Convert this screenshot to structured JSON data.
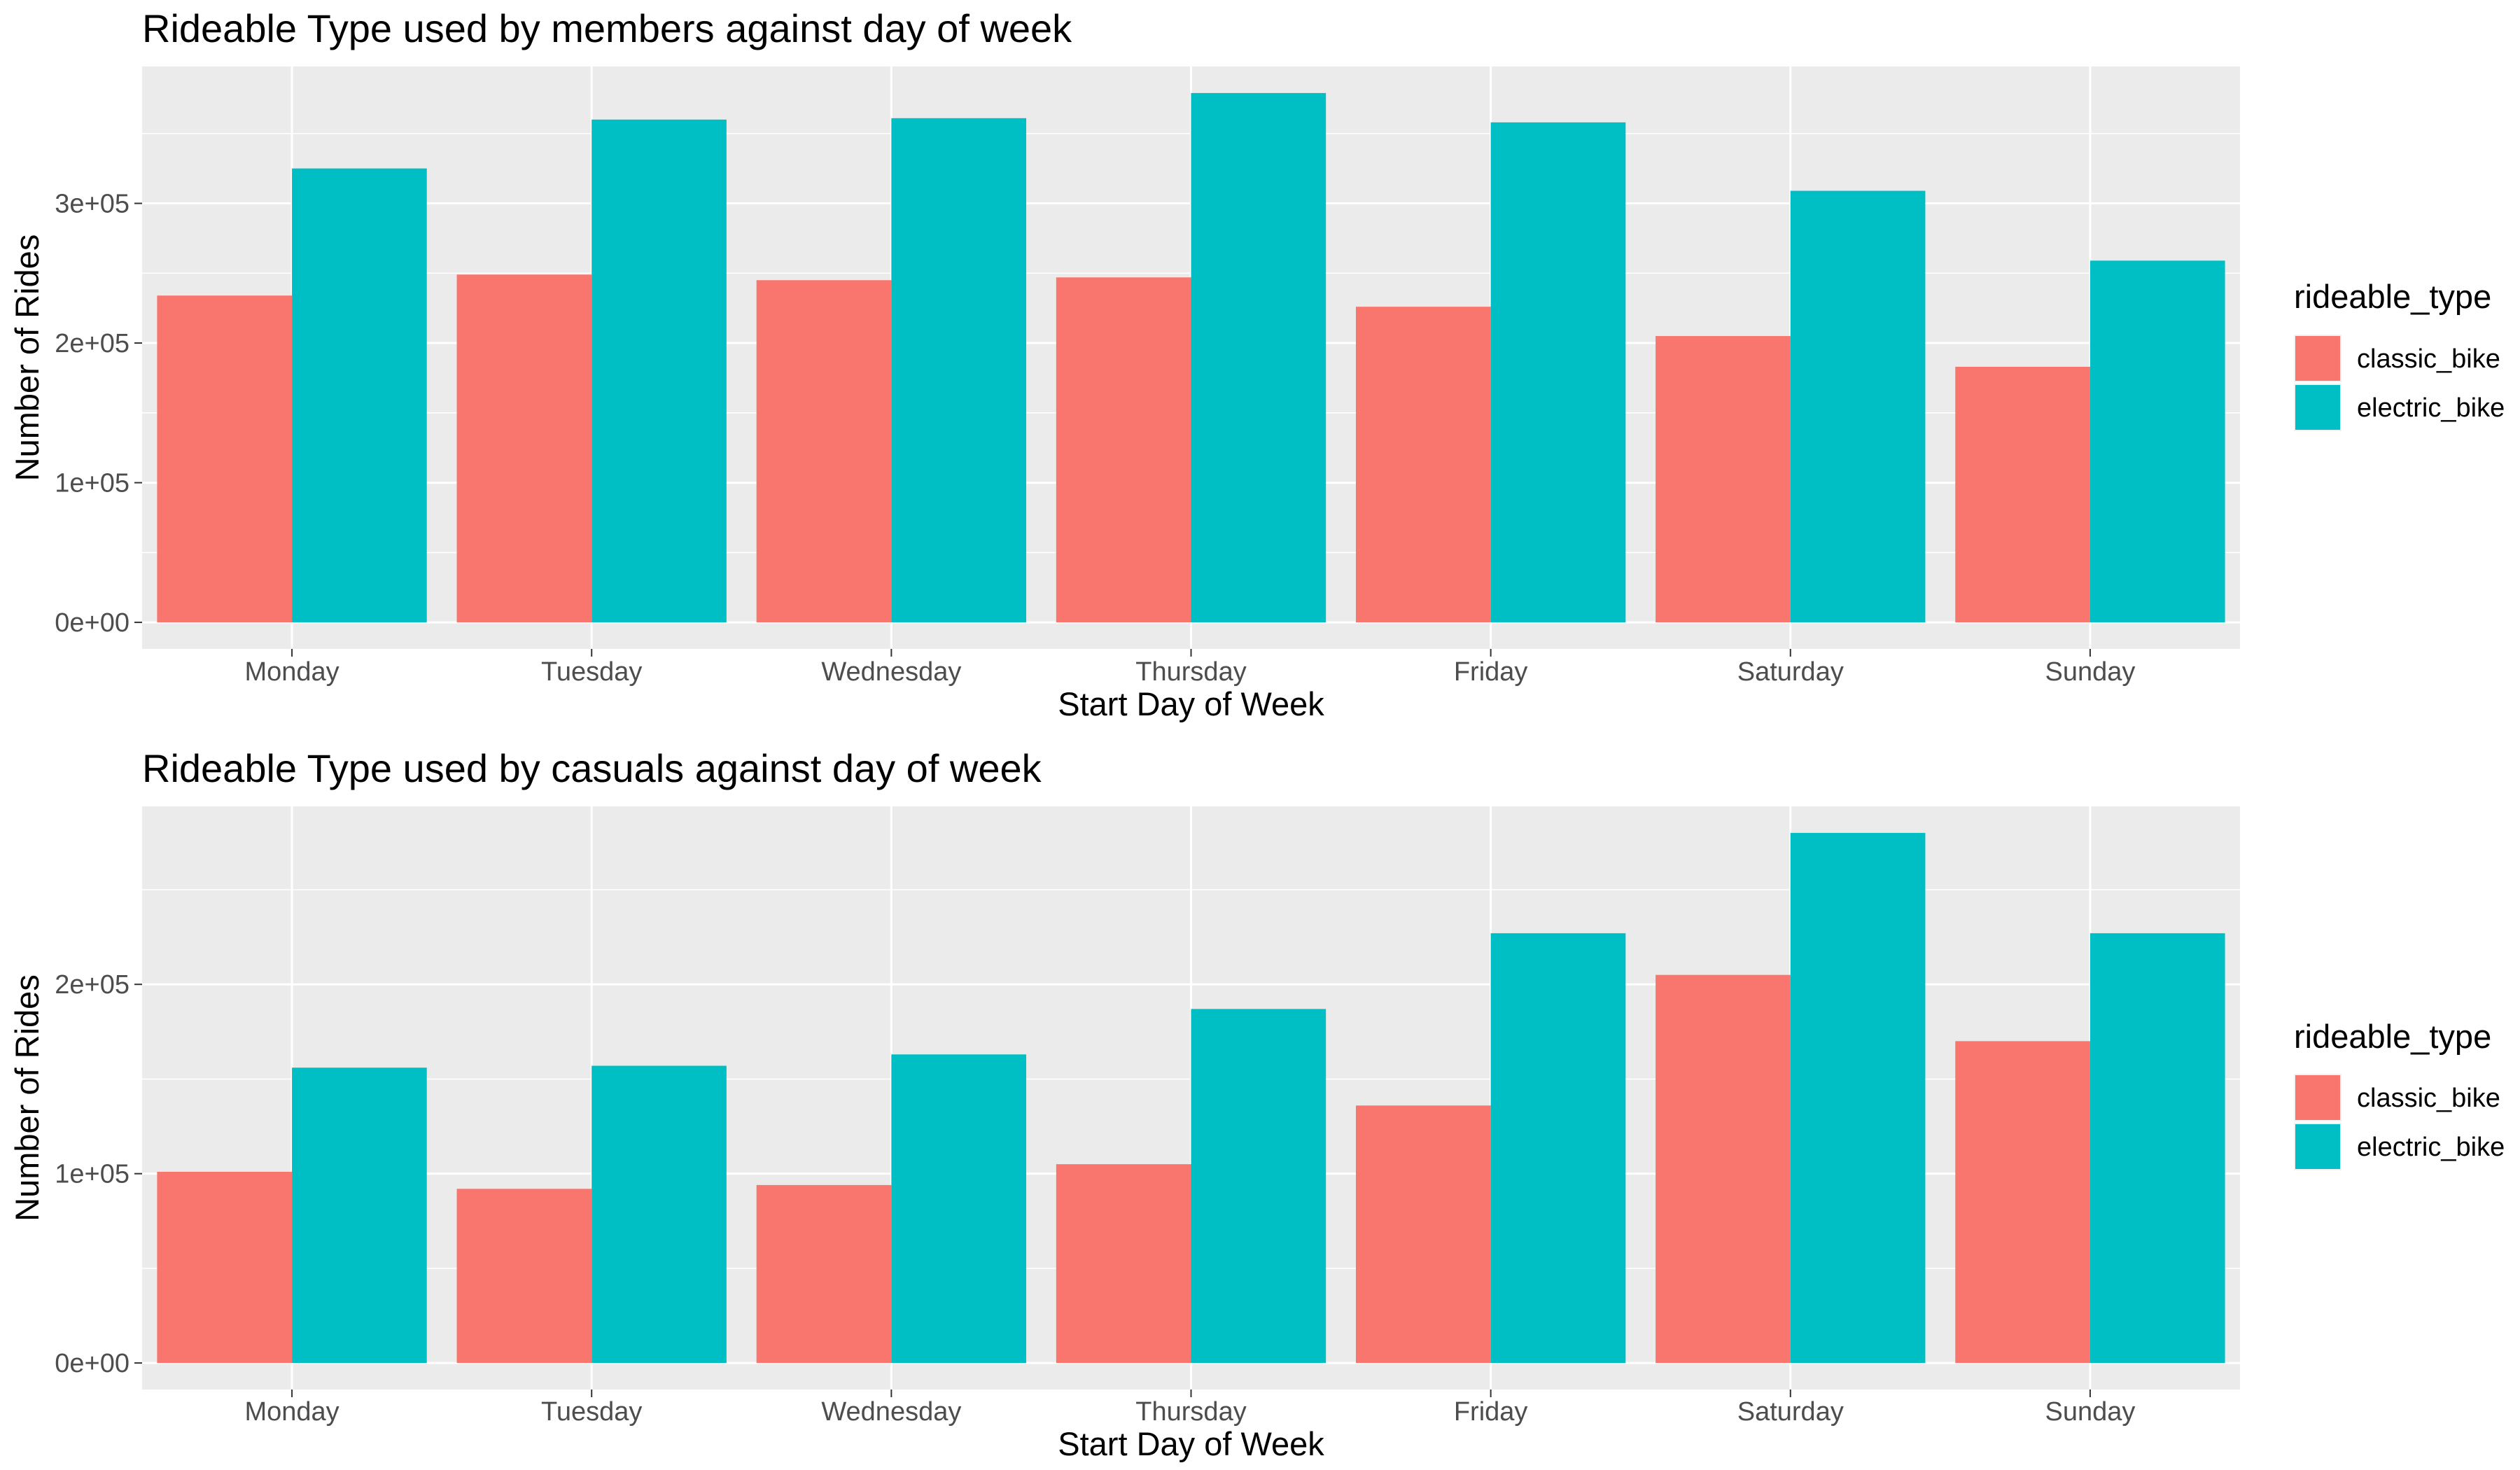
{
  "chart_data": [
    {
      "type": "bar",
      "title": "Rideable Type used by members against day of week",
      "xlabel": "Start Day of Week",
      "ylabel": "Number of Rides",
      "categories": [
        "Monday",
        "Tuesday",
        "Wednesday",
        "Thursday",
        "Friday",
        "Saturday",
        "Sunday"
      ],
      "series": [
        {
          "name": "classic_bike",
          "values": [
            234000,
            249000,
            245000,
            247000,
            226000,
            205000,
            183000
          ]
        },
        {
          "name": "electric_bike",
          "values": [
            325000,
            360000,
            361000,
            379000,
            358000,
            309000,
            259000
          ]
        }
      ],
      "y_ticks": [
        0,
        100000,
        200000,
        300000
      ],
      "y_tick_labels": [
        "0e+00",
        "1e+05",
        "2e+05",
        "3e+05"
      ],
      "ylim": [
        -19000,
        398000
      ],
      "grid": true,
      "legend": {
        "title": "rideable_type",
        "position": "right"
      }
    },
    {
      "type": "bar",
      "title": "Rideable Type used by casuals against day of week",
      "xlabel": "Start Day of Week",
      "ylabel": "Number of Rides",
      "categories": [
        "Monday",
        "Tuesday",
        "Wednesday",
        "Thursday",
        "Friday",
        "Saturday",
        "Sunday"
      ],
      "series": [
        {
          "name": "classic_bike",
          "values": [
            101000,
            92000,
            94000,
            105000,
            136000,
            205000,
            170000
          ]
        },
        {
          "name": "electric_bike",
          "values": [
            156000,
            157000,
            163000,
            187000,
            227000,
            280000,
            227000
          ]
        }
      ],
      "y_ticks": [
        0,
        100000,
        200000
      ],
      "y_tick_labels": [
        "0e+00",
        "1e+05",
        "2e+05"
      ],
      "ylim": [
        -14000,
        294000
      ],
      "grid": true,
      "legend": {
        "title": "rideable_type",
        "position": "right"
      }
    }
  ],
  "colors": {
    "classic_bike": "#F8766D",
    "electric_bike": "#00BFC4",
    "panel_background": "#EBEBEB",
    "grid": "#FFFFFF",
    "tick_text": "#4D4D4D"
  }
}
